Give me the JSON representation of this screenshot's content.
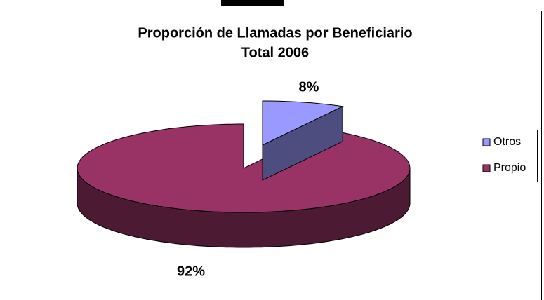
{
  "chart_data": {
    "type": "pie3d",
    "title": "Proporción de Llamadas por Beneficiario",
    "subtitle": "Total 2006",
    "categories": [
      "Otros",
      "Propio"
    ],
    "values": [
      8,
      92
    ],
    "value_labels": [
      "8%",
      "92%"
    ],
    "colors": [
      "#9999ff",
      "#993366"
    ],
    "legend": "right"
  }
}
